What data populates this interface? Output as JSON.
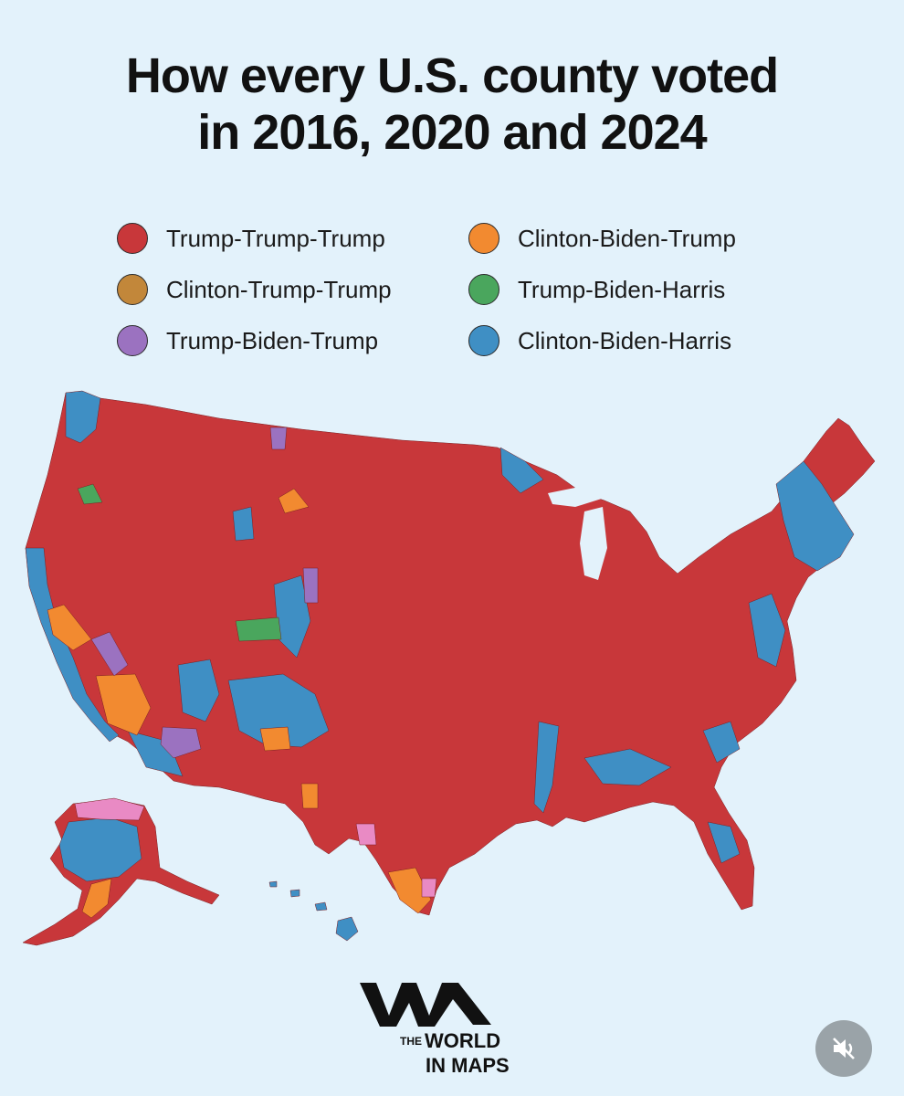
{
  "title": {
    "line1": "How every U.S. county voted",
    "line2": "in 2016, 2020 and 2024"
  },
  "legend": [
    {
      "label": "Trump-Trump-Trump",
      "color": "#c8373a"
    },
    {
      "label": "Clinton-Biden-Trump",
      "color": "#f28a30"
    },
    {
      "label": "Clinton-Trump-Trump",
      "color": "#c2873a"
    },
    {
      "label": "Trump-Biden-Harris",
      "color": "#4aa65d"
    },
    {
      "label": "Trump-Biden-Trump",
      "color": "#9b72c0"
    },
    {
      "label": "Clinton-Biden-Harris",
      "color": "#3f8fc4"
    }
  ],
  "extra_colors": {
    "pink": "#e98ac4",
    "water": "#e3f2fb"
  },
  "logo": {
    "the": "THE",
    "world": "WORLD",
    "maps": "IN MAPS"
  },
  "controls": {
    "mute_icon": "speaker-muted-icon"
  }
}
